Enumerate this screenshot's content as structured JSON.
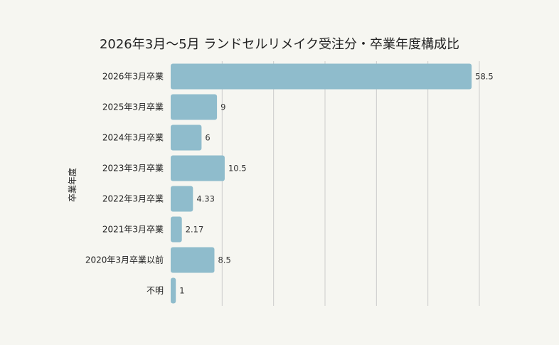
{
  "chart_data": {
    "type": "bar",
    "orientation": "horizontal",
    "title": "2026年3月〜5月 ランドセルリメイク受注分・卒業年度構成比",
    "ylabel": "卒業年度",
    "xlabel": "",
    "categories": [
      "2026年3月卒業",
      "2025年3月卒業",
      "2024年3月卒業",
      "2023年3月卒業",
      "2022年3月卒業",
      "2021年3月卒業",
      "2020年3月卒業以前",
      "不明"
    ],
    "values": [
      58.5,
      9,
      6,
      10.5,
      4.33,
      2.17,
      8.5,
      1
    ],
    "value_labels": [
      "58.5",
      "9",
      "6",
      "10.5",
      "4.33",
      "2.17",
      "8.5",
      "1"
    ],
    "xlim": [
      0,
      60
    ],
    "grid": true,
    "grid_step": 10,
    "bar_color": "#8fbccc",
    "grid_color": "#cccccc",
    "background": "#f6f6f1"
  }
}
